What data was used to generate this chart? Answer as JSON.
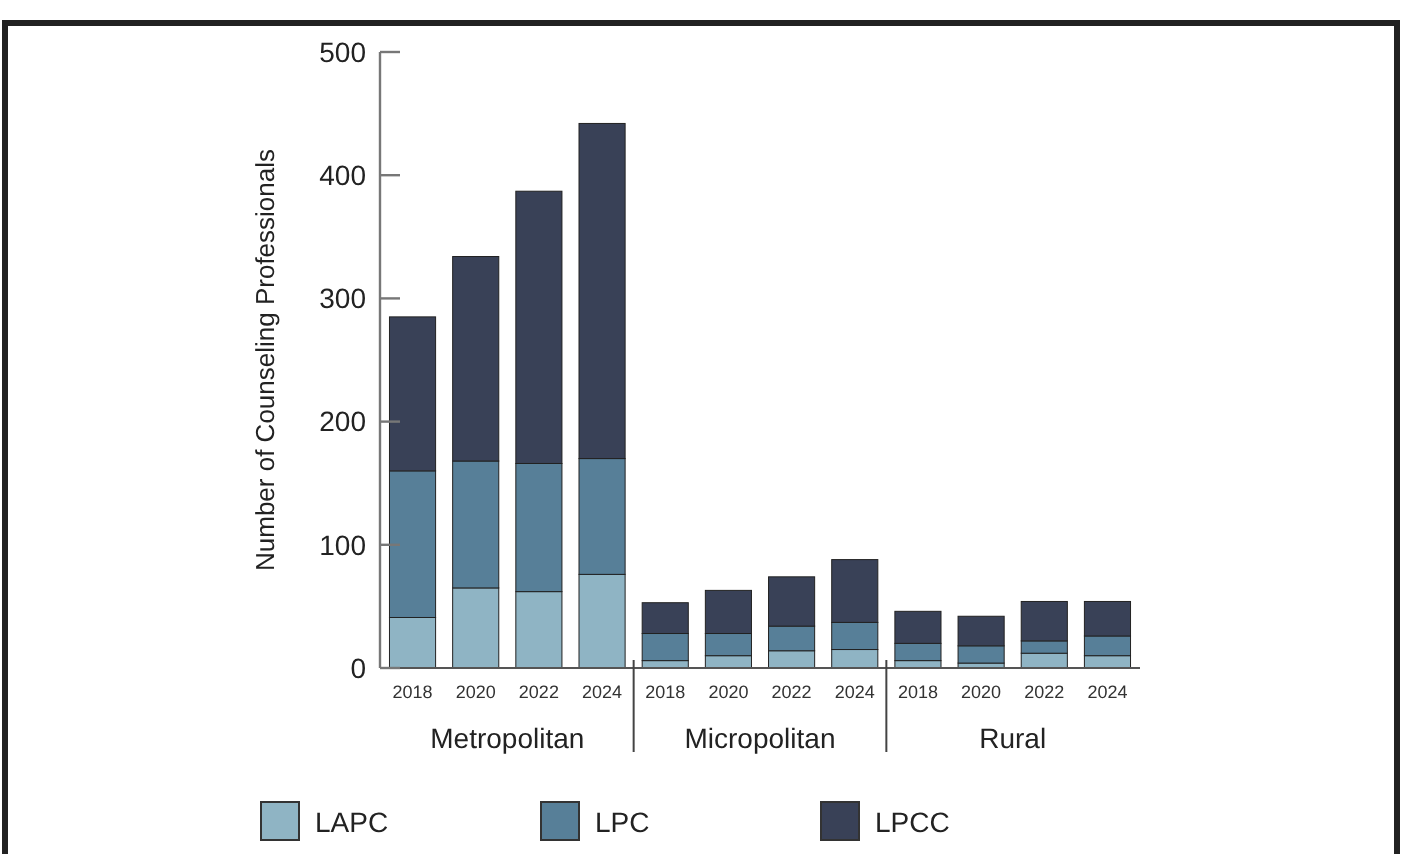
{
  "chart_data": {
    "type": "bar",
    "stacked": true,
    "ylabel": "Number of Counseling Professionals",
    "categories": [
      "2018",
      "2020",
      "2022",
      "2024",
      "2018",
      "2020",
      "2022",
      "2024",
      "2018",
      "2020",
      "2022",
      "2024"
    ],
    "annotations": [
      "Metropolitan",
      "Micropolitan",
      "Rural"
    ],
    "series": [
      {
        "name": "LAPC",
        "color": "#8fb4c4",
        "values": [
          41,
          65,
          62,
          76,
          6,
          10,
          14,
          15,
          6,
          4,
          12,
          10
        ]
      },
      {
        "name": "LPC",
        "color": "#577f98",
        "values": [
          119,
          103,
          104,
          94,
          22,
          18,
          20,
          22,
          14,
          14,
          10,
          16
        ]
      },
      {
        "name": "LPCC",
        "color": "#394157",
        "values": [
          125,
          166,
          221,
          272,
          25,
          35,
          40,
          51,
          26,
          24,
          32,
          28
        ]
      }
    ],
    "ylim": [
      0,
      500
    ],
    "yticks": [
      0,
      100,
      200,
      300,
      400,
      500
    ],
    "grid": false,
    "legend": "bottom"
  }
}
